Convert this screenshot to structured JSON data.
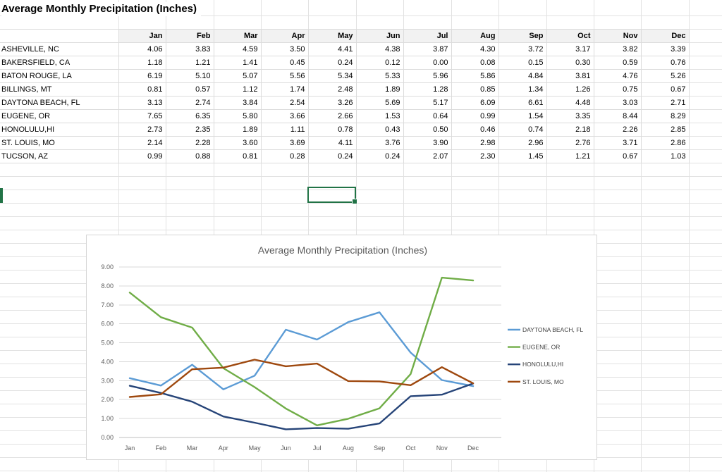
{
  "sheet": {
    "title": "Average Monthly Precipitation (Inches)"
  },
  "table": {
    "columns": [
      "Jan",
      "Feb",
      "Mar",
      "Apr",
      "May",
      "Jun",
      "Jul",
      "Aug",
      "Sep",
      "Oct",
      "Nov",
      "Dec"
    ],
    "rows": [
      {
        "name": "ASHEVILLE, NC",
        "values": [
          "4.06",
          "3.83",
          "4.59",
          "3.50",
          "4.41",
          "4.38",
          "3.87",
          "4.30",
          "3.72",
          "3.17",
          "3.82",
          "3.39"
        ]
      },
      {
        "name": "BAKERSFIELD, CA",
        "values": [
          "1.18",
          "1.21",
          "1.41",
          "0.45",
          "0.24",
          "0.12",
          "0.00",
          "0.08",
          "0.15",
          "0.30",
          "0.59",
          "0.76"
        ]
      },
      {
        "name": "BATON ROUGE, LA",
        "values": [
          "6.19",
          "5.10",
          "5.07",
          "5.56",
          "5.34",
          "5.33",
          "5.96",
          "5.86",
          "4.84",
          "3.81",
          "4.76",
          "5.26"
        ]
      },
      {
        "name": "BILLINGS, MT",
        "values": [
          "0.81",
          "0.57",
          "1.12",
          "1.74",
          "2.48",
          "1.89",
          "1.28",
          "0.85",
          "1.34",
          "1.26",
          "0.75",
          "0.67"
        ]
      },
      {
        "name": "DAYTONA BEACH, FL",
        "values": [
          "3.13",
          "2.74",
          "3.84",
          "2.54",
          "3.26",
          "5.69",
          "5.17",
          "6.09",
          "6.61",
          "4.48",
          "3.03",
          "2.71"
        ]
      },
      {
        "name": "EUGENE, OR",
        "values": [
          "7.65",
          "6.35",
          "5.80",
          "3.66",
          "2.66",
          "1.53",
          "0.64",
          "0.99",
          "1.54",
          "3.35",
          "8.44",
          "8.29"
        ]
      },
      {
        "name": "HONOLULU,HI",
        "values": [
          "2.73",
          "2.35",
          "1.89",
          "1.11",
          "0.78",
          "0.43",
          "0.50",
          "0.46",
          "0.74",
          "2.18",
          "2.26",
          "2.85"
        ]
      },
      {
        "name": "ST. LOUIS, MO",
        "values": [
          "2.14",
          "2.28",
          "3.60",
          "3.69",
          "4.11",
          "3.76",
          "3.90",
          "2.98",
          "2.96",
          "2.76",
          "3.71",
          "2.86"
        ]
      },
      {
        "name": "TUCSON, AZ",
        "values": [
          "0.99",
          "0.88",
          "0.81",
          "0.28",
          "0.24",
          "0.24",
          "2.07",
          "2.30",
          "1.45",
          "1.21",
          "0.67",
          "1.03"
        ]
      }
    ]
  },
  "ui": {
    "selection_color": "#217346",
    "gridline_color": "#e2e2e2"
  },
  "chart_data": {
    "type": "line",
    "title": "Average Monthly Precipitation (Inches)",
    "categories": [
      "Jan",
      "Feb",
      "Mar",
      "Apr",
      "May",
      "Jun",
      "Jul",
      "Aug",
      "Sep",
      "Oct",
      "Nov",
      "Dec"
    ],
    "series": [
      {
        "name": "DAYTONA BEACH, FL",
        "color": "#5B9BD5",
        "values": [
          3.13,
          2.74,
          3.84,
          2.54,
          3.26,
          5.69,
          5.17,
          6.09,
          6.61,
          4.48,
          3.03,
          2.71
        ]
      },
      {
        "name": "EUGENE, OR",
        "color": "#70AD47",
        "values": [
          7.65,
          6.35,
          5.8,
          3.66,
          2.66,
          1.53,
          0.64,
          0.99,
          1.54,
          3.35,
          8.44,
          8.29
        ]
      },
      {
        "name": "HONOLULU,HI",
        "color": "#264478",
        "values": [
          2.73,
          2.35,
          1.89,
          1.11,
          0.78,
          0.43,
          0.5,
          0.46,
          0.74,
          2.18,
          2.26,
          2.85
        ]
      },
      {
        "name": "ST. LOUIS, MO",
        "color": "#9E480E",
        "values": [
          2.14,
          2.28,
          3.6,
          3.69,
          4.11,
          3.76,
          3.9,
          2.98,
          2.96,
          2.76,
          3.71,
          2.86
        ]
      }
    ],
    "ylim": [
      0,
      9
    ],
    "ytick_labels": [
      "0.00",
      "1.00",
      "2.00",
      "3.00",
      "4.00",
      "5.00",
      "6.00",
      "7.00",
      "8.00",
      "9.00"
    ],
    "xlabel": "",
    "ylabel": "",
    "grid": true,
    "legend_position": "right"
  }
}
